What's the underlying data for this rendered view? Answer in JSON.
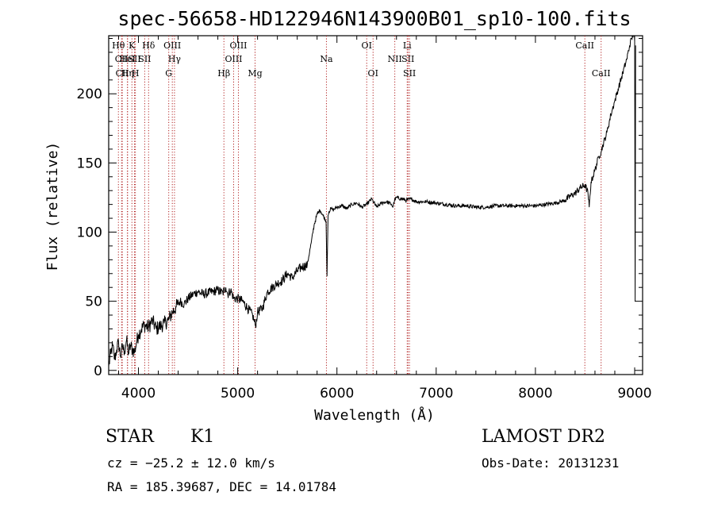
{
  "info": {
    "class": "STAR",
    "subclass": "K1",
    "survey": "LAMOST DR2",
    "redshift": "cz = −25.2 ± 12.0 km/s",
    "obs_date": "Obs-Date: 20131231",
    "coords": "RA = 185.39687, DEC =  14.01784"
  },
  "chart_data": {
    "type": "line",
    "title": "spec-56658-HD122946N143900B01_sp10-100.fits",
    "xlabel": "Wavelength (Å)",
    "ylabel": "Flux (relative)",
    "xlim": [
      3700,
      9080
    ],
    "ylim": [
      -3,
      242
    ],
    "xticks": [
      4000,
      5000,
      6000,
      7000,
      8000,
      9000
    ],
    "yticks": [
      0,
      50,
      100,
      150,
      200
    ],
    "grid": false,
    "series": [
      {
        "x": [
          3700,
          3720,
          3740,
          3760,
          3780,
          3800,
          3820,
          3840,
          3860,
          3880,
          3900,
          3920,
          3940,
          3960,
          3980,
          4000,
          4030,
          4060,
          4100,
          4140,
          4180,
          4220,
          4260,
          4300,
          4340,
          4380,
          4420,
          4460,
          4500,
          4550,
          4600,
          4650,
          4700,
          4750,
          4800,
          4850,
          4880,
          4900,
          4930,
          4960,
          5000,
          5050,
          5100,
          5150,
          5180,
          5200,
          5250,
          5300,
          5350,
          5400,
          5450,
          5500,
          5550,
          5600,
          5650,
          5700,
          5740,
          5770,
          5800,
          5830,
          5860,
          5890,
          5900,
          5910,
          5920,
          5940,
          5960,
          6000,
          6050,
          6100,
          6150,
          6200,
          6250,
          6300,
          6350,
          6400,
          6450,
          6500,
          6550,
          6563,
          6580,
          6600,
          6650,
          6700,
          6750,
          6800,
          6900,
          7000,
          7100,
          7200,
          7300,
          7400,
          7500,
          7600,
          7700,
          7800,
          7900,
          8000,
          8100,
          8200,
          8300,
          8350,
          8400,
          8450,
          8500,
          8530,
          8542,
          8560,
          8600,
          8640,
          8662,
          8680,
          8720,
          8760,
          8800,
          8840,
          8880,
          8920,
          8950,
          8970,
          8990,
          9000,
          9005,
          9010
        ],
        "y": [
          3,
          12,
          18,
          8,
          15,
          20,
          10,
          17,
          14,
          22,
          12,
          18,
          15,
          13,
          20,
          26,
          30,
          33,
          31,
          36,
          30,
          32,
          34,
          36,
          42,
          46,
          50,
          48,
          52,
          55,
          57,
          55,
          56,
          57,
          58,
          56,
          60,
          55,
          58,
          52,
          52,
          50,
          45,
          40,
          32,
          42,
          45,
          57,
          60,
          63,
          65,
          70,
          67,
          72,
          75,
          76,
          92,
          105,
          113,
          116,
          112,
          108,
          68,
          112,
          115,
          117,
          116,
          118,
          119,
          117,
          120,
          121,
          118,
          120,
          124,
          118,
          121,
          122,
          120,
          118,
          123,
          125,
          124,
          123,
          124,
          122,
          122,
          121,
          120,
          119,
          119,
          118,
          118,
          119,
          119,
          119,
          119,
          119,
          120,
          121,
          123,
          126,
          128,
          132,
          134,
          128,
          118,
          136,
          145,
          155,
          158,
          163,
          172,
          185,
          195,
          205,
          215,
          225,
          235,
          240,
          244,
          238,
          50,
          235
        ]
      }
    ],
    "lines": [
      {
        "name": "Hθ",
        "w": 3798,
        "row": 1
      },
      {
        "name": "CII",
        "w": 3830,
        "row": 2
      },
      {
        "name": "CII",
        "w": 3837,
        "row": 3
      },
      {
        "name": "HeI",
        "w": 3889,
        "row": 2
      },
      {
        "name": "Hη",
        "w": 3890,
        "row": 3
      },
      {
        "name": "K",
        "w": 3934,
        "row": 1
      },
      {
        "name": "SII",
        "w": 3960,
        "row": 2
      },
      {
        "name": "H",
        "w": 3969,
        "row": 3
      },
      {
        "name": "Hδ",
        "w": 4102,
        "row": 1
      },
      {
        "name": "SII",
        "w": 4063,
        "row": 2
      },
      {
        "name": "G",
        "w": 4305,
        "row": 3
      },
      {
        "name": "OIII",
        "w": 4341,
        "row": 1
      },
      {
        "name": "Hγ",
        "w": 4363,
        "row": 2
      },
      {
        "name": "Hβ",
        "w": 4861,
        "row": 3
      },
      {
        "name": "OIII",
        "w": 4959,
        "row": 2
      },
      {
        "name": "OIII",
        "w": 5007,
        "row": 1
      },
      {
        "name": "Mg",
        "w": 5175,
        "row": 3
      },
      {
        "name": "Na",
        "w": 5894,
        "row": 2
      },
      {
        "name": "OI",
        "w": 6300,
        "row": 1
      },
      {
        "name": "OI",
        "w": 6364,
        "row": 3
      },
      {
        "name": "NII",
        "w": 6583,
        "row": 2
      },
      {
        "name": "Li",
        "w": 6708,
        "row": 1
      },
      {
        "name": "SII",
        "w": 6716,
        "row": 2
      },
      {
        "name": "SII",
        "w": 6731,
        "row": 3
      },
      {
        "name": "CaII",
        "w": 8498,
        "row": 1
      },
      {
        "name": "CaII",
        "w": 8662,
        "row": 3
      }
    ]
  }
}
